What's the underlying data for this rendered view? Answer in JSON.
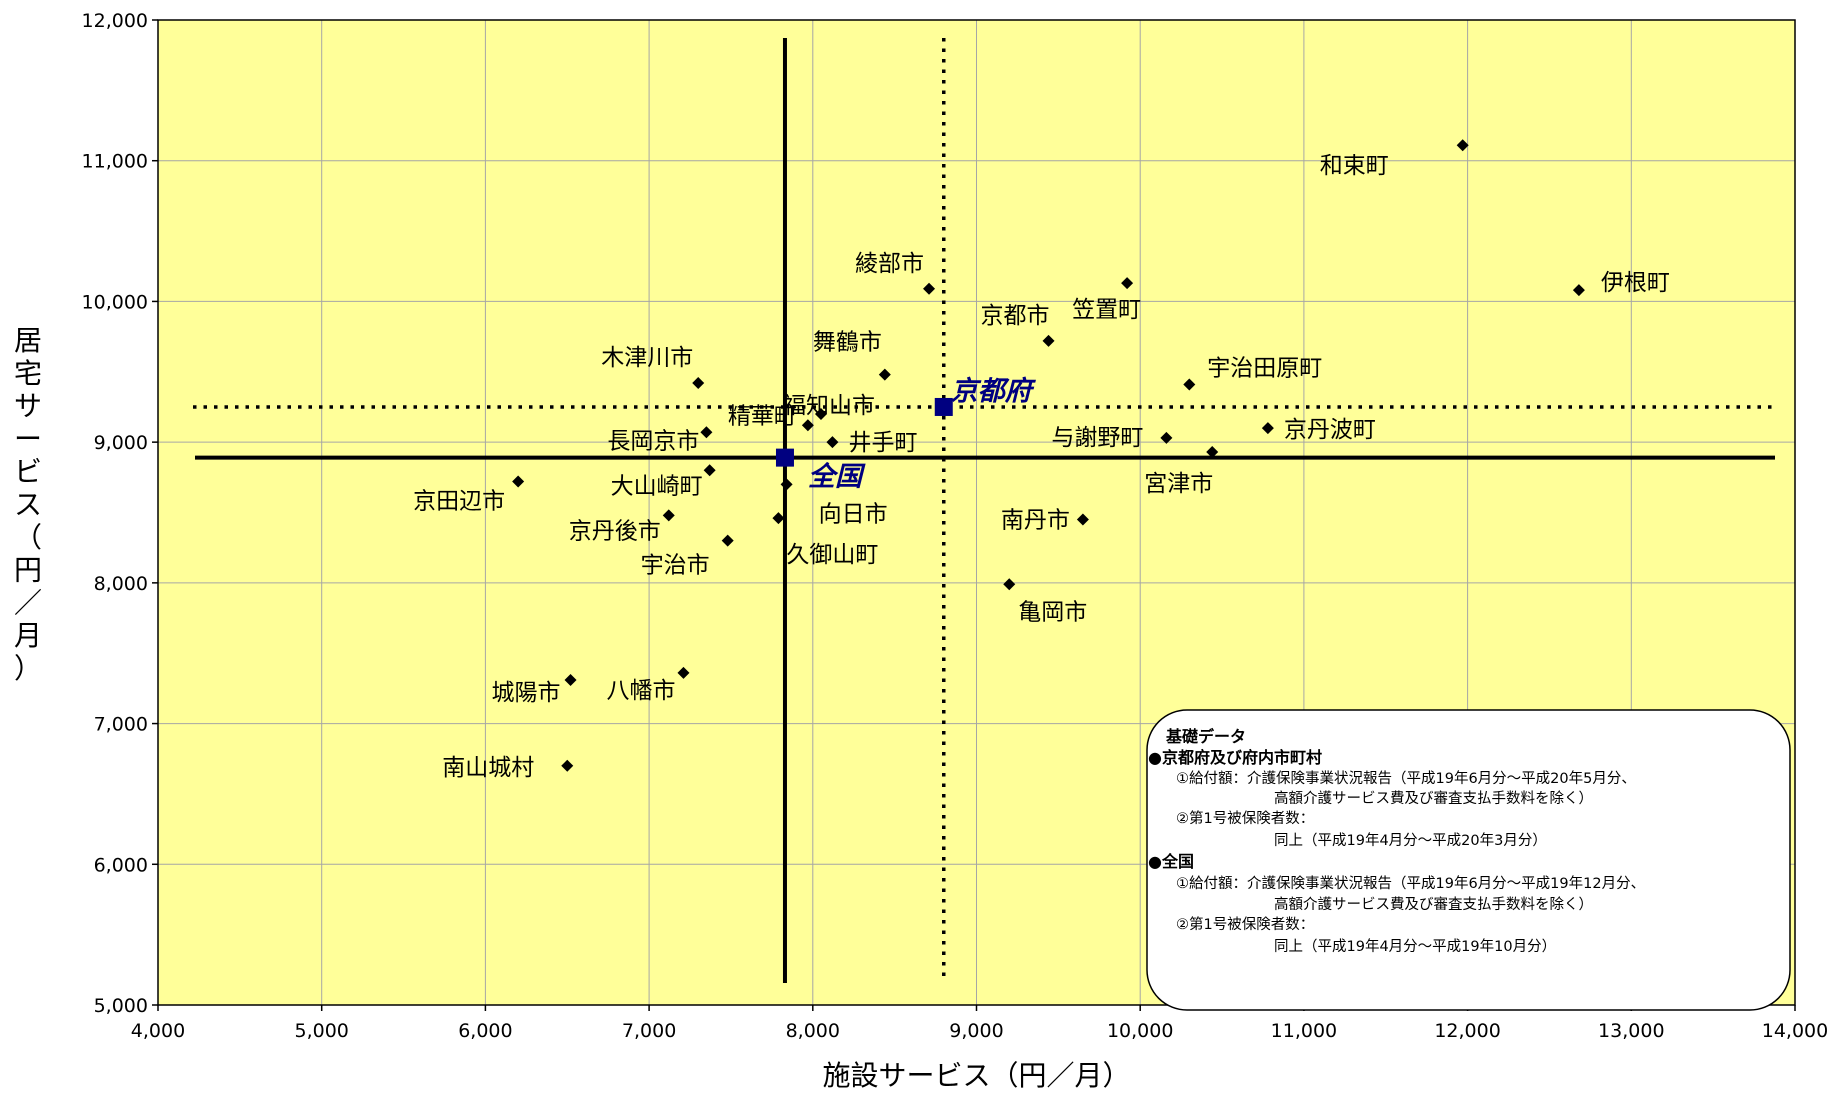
{
  "chart_data": {
    "type": "scatter",
    "xlabel": "施設サービス（円／月）",
    "ylabel_chars": [
      "居",
      "宅",
      "サ",
      "ー",
      "ビ",
      "ス",
      "（",
      "円",
      "／",
      "月",
      "）"
    ],
    "xlim": [
      4000,
      14000
    ],
    "ylim": [
      5000,
      12000
    ],
    "x_ticks": [
      4000,
      5000,
      6000,
      7000,
      8000,
      9000,
      10000,
      11000,
      12000,
      13000,
      14000
    ],
    "y_ticks": [
      5000,
      6000,
      7000,
      8000,
      9000,
      10000,
      11000,
      12000
    ],
    "x_tick_labels": [
      "4,000",
      "5,000",
      "6,000",
      "7,000",
      "8,000",
      "9,000",
      "10,000",
      "11,000",
      "12,000",
      "13,000",
      "14,000"
    ],
    "y_tick_labels": [
      "5,000",
      "6,000",
      "7,000",
      "8,000",
      "9,000",
      "10,000",
      "11,000",
      "12,000"
    ],
    "grid": true,
    "colors": {
      "plot_bg": "#ffff99",
      "point": "#000000",
      "reference": "#000080",
      "grid": "#a6a6a6"
    },
    "points": [
      {
        "label": "和束町",
        "x": 11970,
        "y": 11110
      },
      {
        "label": "伊根町",
        "x": 12680,
        "y": 10080
      },
      {
        "label": "綾部市",
        "x": 8710,
        "y": 10090
      },
      {
        "label": "笠置町",
        "x": 9920,
        "y": 10130
      },
      {
        "label": "京都市",
        "x": 9440,
        "y": 9720
      },
      {
        "label": "舞鶴市",
        "x": 8440,
        "y": 9480
      },
      {
        "label": "木津川市",
        "x": 7300,
        "y": 9420
      },
      {
        "label": "宇治田原町",
        "x": 10300,
        "y": 9410
      },
      {
        "label": "福知山市",
        "x": 8050,
        "y": 9200
      },
      {
        "label": "精華町",
        "x": 7970,
        "y": 9120
      },
      {
        "label": "長岡京市",
        "x": 7350,
        "y": 9070
      },
      {
        "label": "井手町",
        "x": 8120,
        "y": 9000
      },
      {
        "label": "与謝野町",
        "x": 10160,
        "y": 9030
      },
      {
        "label": "京丹波町",
        "x": 10780,
        "y": 9100
      },
      {
        "label": "宮津市",
        "x": 10440,
        "y": 8930
      },
      {
        "label": "大山崎町",
        "x": 7370,
        "y": 8800
      },
      {
        "label": "京田辺市",
        "x": 6200,
        "y": 8720
      },
      {
        "label": "向日市",
        "x": 7840,
        "y": 8700
      },
      {
        "label": "京丹後市",
        "x": 7120,
        "y": 8480
      },
      {
        "label": "久御山町",
        "x": 7790,
        "y": 8460
      },
      {
        "label": "南丹市",
        "x": 9650,
        "y": 8450
      },
      {
        "label": "宇治市",
        "x": 7480,
        "y": 8300
      },
      {
        "label": "亀岡市",
        "x": 9200,
        "y": 7990
      },
      {
        "label": "城陽市",
        "x": 6520,
        "y": 7310
      },
      {
        "label": "八幡市",
        "x": 7210,
        "y": 7360
      },
      {
        "label": "南山城村",
        "x": 6500,
        "y": 6700
      }
    ],
    "reference_points": [
      {
        "label": "全国",
        "x": 7830,
        "y": 8890,
        "line_style": "solid"
      },
      {
        "label": "京都府",
        "x": 8800,
        "y": 9250,
        "line_style": "dotted"
      }
    ]
  },
  "note": {
    "title": "基礎データ",
    "lines": [
      {
        "text": "●京都府及び府内市町村",
        "style": "heading"
      },
      {
        "text": "①給付額：介護保険事業状況報告（平成19年6月分～平成20年5月分、",
        "style": "item"
      },
      {
        "text": "高額介護サービス費及び審査支払手数料を除く）",
        "style": "cont"
      },
      {
        "text": "②第1号被保険者数：",
        "style": "item"
      },
      {
        "text": "同上（平成19年4月分～平成20年3月分）",
        "style": "cont"
      },
      {
        "text": "●全国",
        "style": "heading"
      },
      {
        "text": "①給付額：介護保険事業状況報告（平成19年6月分～平成19年12月分、",
        "style": "item"
      },
      {
        "text": "高額介護サービス費及び審査支払手数料を除く）",
        "style": "cont"
      },
      {
        "text": "②第1号被保険者数：",
        "style": "item"
      },
      {
        "text": "同上（平成19年4月分～平成19年10月分）",
        "style": "cont"
      }
    ]
  }
}
